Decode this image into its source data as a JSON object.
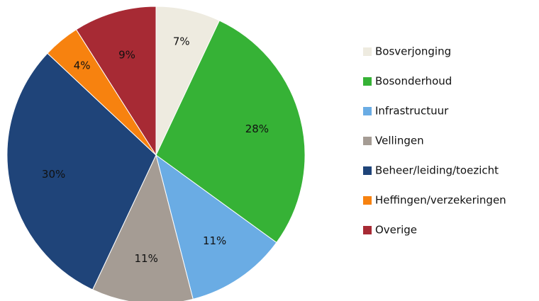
{
  "chart_data": {
    "type": "pie",
    "categories": [
      "Bosverjonging",
      "Bosonderhoud",
      "Infrastructuur",
      "Vellingen",
      "Beheer/leiding/toezicht",
      "Heffingen/verzekeringen",
      "Overige"
    ],
    "values": [
      7,
      28,
      11,
      11,
      30,
      4,
      9
    ],
    "value_labels": [
      "7%",
      "28%",
      "11%",
      "11%",
      "30%",
      "4%",
      "9%"
    ],
    "colors": [
      "#eeebe0",
      "#36b236",
      "#6aace4",
      "#a59c94",
      "#1f4479",
      "#f7820f",
      "#a72a34"
    ],
    "legend": "right"
  }
}
